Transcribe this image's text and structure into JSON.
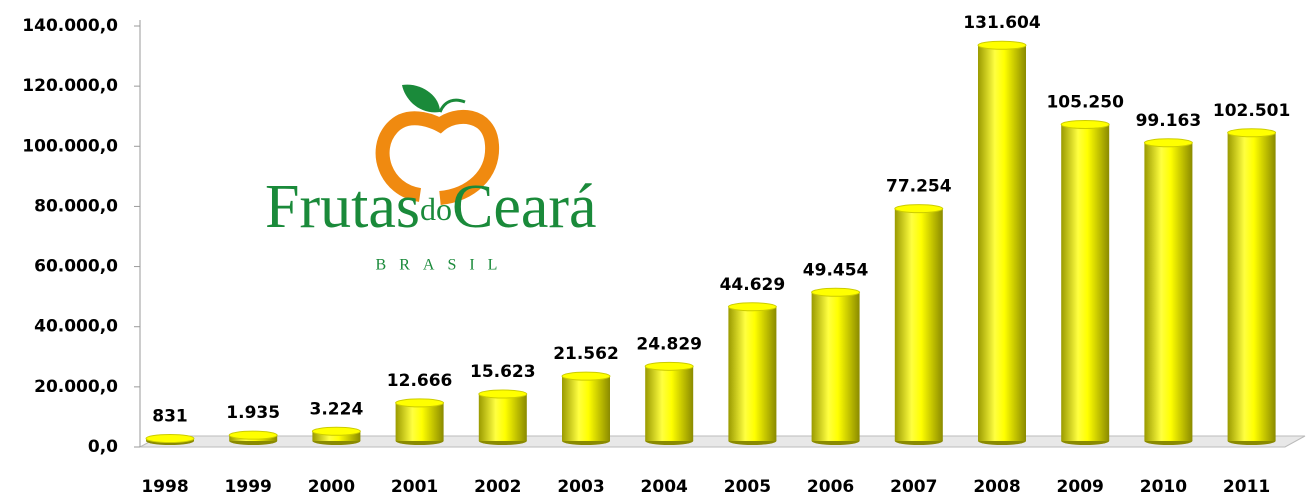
{
  "chart_data": {
    "type": "bar",
    "categories": [
      "1998",
      "1999",
      "2000",
      "2001",
      "2002",
      "2003",
      "2004",
      "2005",
      "2006",
      "2007",
      "2008",
      "2009",
      "2010",
      "2011"
    ],
    "values": [
      831,
      1935,
      3224,
      12666,
      15623,
      21562,
      24829,
      44629,
      49454,
      77254,
      131604,
      105250,
      99163,
      102501
    ],
    "value_labels": [
      "831",
      "1.935",
      "3.224",
      "12.666",
      "15.623",
      "21.562",
      "24.829",
      "44.629",
      "49.454",
      "77.254",
      "131.604",
      "105.250",
      "99.163",
      "102.501"
    ],
    "color": "#ffff00",
    "ylim": [
      0,
      140000
    ],
    "yticks": [
      {
        "value": 0,
        "label": "0,0"
      },
      {
        "value": 20000,
        "label": "20.000,0"
      },
      {
        "value": 40000,
        "label": "40.000,0"
      },
      {
        "value": 60000,
        "label": "60.000,0"
      },
      {
        "value": 80000,
        "label": "80.000,0"
      },
      {
        "value": 100000,
        "label": "100.000,0"
      },
      {
        "value": 120000,
        "label": "120.000,0"
      },
      {
        "value": 140000,
        "label": "140.000,0"
      }
    ],
    "grid": false,
    "logo": {
      "name": [
        "Frutas",
        "do",
        "Ceará"
      ],
      "country": "BRASIL"
    }
  }
}
